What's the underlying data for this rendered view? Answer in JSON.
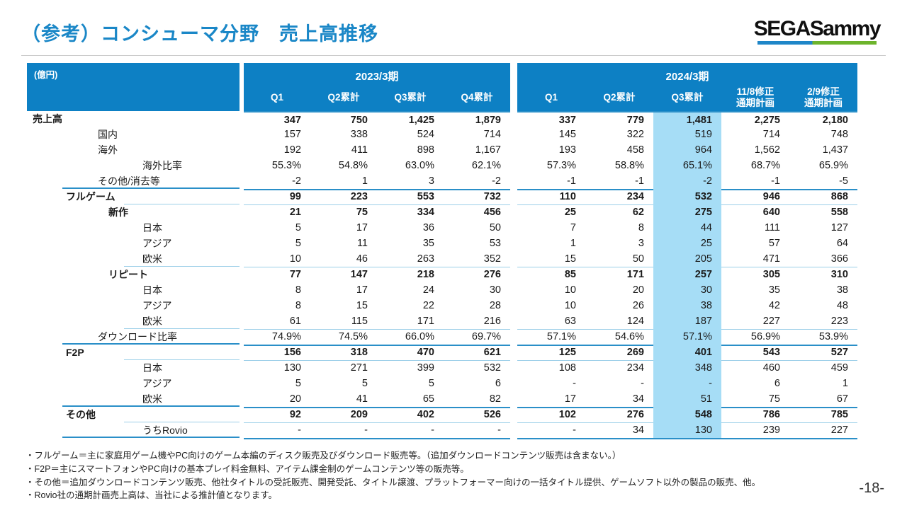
{
  "title": "（参考）コンシューマ分野　売上高推移",
  "logo": {
    "text": "SEGASammy"
  },
  "page_number": "-18-",
  "colors": {
    "header_blue": "#0d80c4",
    "title_blue": "#1a87c7",
    "highlight_blue": "#a6ddf6",
    "separator_light": "#9ccfe8",
    "separator_medium": "#2a8fc8",
    "logo_blue": "#1f86c8",
    "logo_green": "#6db42c"
  },
  "table": {
    "unit_label": "(億円)",
    "groups": [
      {
        "label": "2023/3期",
        "columns": [
          "Q1",
          "Q2累計",
          "Q3累計",
          "Q4累計"
        ]
      },
      {
        "label": "2024/3期",
        "columns": [
          "Q1",
          "Q2累計",
          "Q3累計",
          "11/8修正\n通期計画",
          "2/9修正\n通期計画"
        ]
      }
    ],
    "highlighted_column": "2024/3期 Q3累計",
    "rows": [
      {
        "label": "売上高",
        "indent": 0,
        "bold": true,
        "sep": "",
        "values": [
          "347",
          "750",
          "1,425",
          "1,879",
          "337",
          "779",
          "1,481",
          "2,275",
          "2,180"
        ]
      },
      {
        "label": "国内",
        "indent": 2,
        "bold": false,
        "sep": "",
        "values": [
          "157",
          "338",
          "524",
          "714",
          "145",
          "322",
          "519",
          "714",
          "748"
        ]
      },
      {
        "label": "海外",
        "indent": 2,
        "bold": false,
        "sep": "",
        "values": [
          "192",
          "411",
          "898",
          "1,167",
          "193",
          "458",
          "964",
          "1,562",
          "1,437"
        ]
      },
      {
        "label": "海外比率",
        "indent": 4,
        "bold": false,
        "sep": "",
        "values": [
          "55.3%",
          "54.8%",
          "63.0%",
          "62.1%",
          "57.3%",
          "58.8%",
          "65.1%",
          "68.7%",
          "65.9%"
        ]
      },
      {
        "label": "その他/消去等",
        "indent": 2,
        "bold": false,
        "sep": "med",
        "values": [
          "-2",
          "1",
          "3",
          "-2",
          "-1",
          "-1",
          "-2",
          "-1",
          "-5"
        ]
      },
      {
        "label": "フルゲーム",
        "indent": 1,
        "bold": true,
        "sep": "thin",
        "values": [
          "99",
          "223",
          "553",
          "732",
          "110",
          "234",
          "532",
          "946",
          "868"
        ]
      },
      {
        "label": "新作",
        "indent": 3,
        "bold": true,
        "sep": "",
        "values": [
          "21",
          "75",
          "334",
          "456",
          "25",
          "62",
          "275",
          "640",
          "558"
        ]
      },
      {
        "label": "日本",
        "indent": 4,
        "bold": false,
        "sep": "",
        "values": [
          "5",
          "17",
          "36",
          "50",
          "7",
          "8",
          "44",
          "111",
          "127"
        ]
      },
      {
        "label": "アジア",
        "indent": 4,
        "bold": false,
        "sep": "",
        "values": [
          "5",
          "11",
          "35",
          "53",
          "1",
          "3",
          "25",
          "57",
          "64"
        ]
      },
      {
        "label": "欧米",
        "indent": 4,
        "bold": false,
        "sep": "thin",
        "values": [
          "10",
          "46",
          "263",
          "352",
          "15",
          "50",
          "205",
          "471",
          "366"
        ]
      },
      {
        "label": "リピート",
        "indent": 3,
        "bold": true,
        "sep": "",
        "values": [
          "77",
          "147",
          "218",
          "276",
          "85",
          "171",
          "257",
          "305",
          "310"
        ]
      },
      {
        "label": "日本",
        "indent": 4,
        "bold": false,
        "sep": "",
        "values": [
          "8",
          "17",
          "24",
          "30",
          "10",
          "20",
          "30",
          "35",
          "38"
        ]
      },
      {
        "label": "アジア",
        "indent": 4,
        "bold": false,
        "sep": "",
        "values": [
          "8",
          "15",
          "22",
          "28",
          "10",
          "26",
          "38",
          "42",
          "48"
        ]
      },
      {
        "label": "欧米",
        "indent": 4,
        "bold": false,
        "sep": "thin",
        "values": [
          "61",
          "115",
          "171",
          "216",
          "63",
          "124",
          "187",
          "227",
          "223"
        ]
      },
      {
        "label": "ダウンロード比率",
        "indent": 2,
        "bold": false,
        "sep": "med",
        "values": [
          "74.9%",
          "74.5%",
          "66.0%",
          "69.7%",
          "57.1%",
          "54.6%",
          "57.1%",
          "56.9%",
          "53.9%"
        ]
      },
      {
        "label": "F2P",
        "indent": 1,
        "bold": true,
        "sep": "thin",
        "values": [
          "156",
          "318",
          "470",
          "621",
          "125",
          "269",
          "401",
          "543",
          "527"
        ]
      },
      {
        "label": "日本",
        "indent": 4,
        "bold": false,
        "sep": "",
        "values": [
          "130",
          "271",
          "399",
          "532",
          "108",
          "234",
          "348",
          "460",
          "459"
        ]
      },
      {
        "label": "アジア",
        "indent": 4,
        "bold": false,
        "sep": "",
        "values": [
          "5",
          "5",
          "5",
          "6",
          "-",
          "-",
          "-",
          "6",
          "1"
        ]
      },
      {
        "label": "欧米",
        "indent": 4,
        "bold": false,
        "sep": "med",
        "values": [
          "20",
          "41",
          "65",
          "82",
          "17",
          "34",
          "51",
          "75",
          "67"
        ]
      },
      {
        "label": "その他",
        "indent": 1,
        "bold": true,
        "sep": "thin",
        "values": [
          "92",
          "209",
          "402",
          "526",
          "102",
          "276",
          "548",
          "786",
          "785"
        ]
      },
      {
        "label": "うちRovio",
        "indent": 4,
        "bold": false,
        "sep": "med",
        "values": [
          "-",
          "-",
          "-",
          "-",
          "-",
          "34",
          "130",
          "239",
          "227"
        ]
      }
    ]
  },
  "footnotes": [
    "・フルゲーム＝主に家庭用ゲーム機やPC向けのゲーム本編のディスク販売及びダウンロード販売等。（追加ダウンロードコンテンツ販売は含まない。）",
    "・F2P＝主にスマートフォンやPC向けの基本プレイ料金無料、アイテム課金制のゲームコンテンツ等の販売等。",
    "・その他＝追加ダウンロードコンテンツ販売、他社タイトルの受託販売、開発受託、タイトル譲渡、プラットフォーマー向けの一括タイトル提供、ゲームソフト以外の製品の販売、他。",
    "・Rovio社の通期計画売上高は、当社による推計値となります。"
  ]
}
